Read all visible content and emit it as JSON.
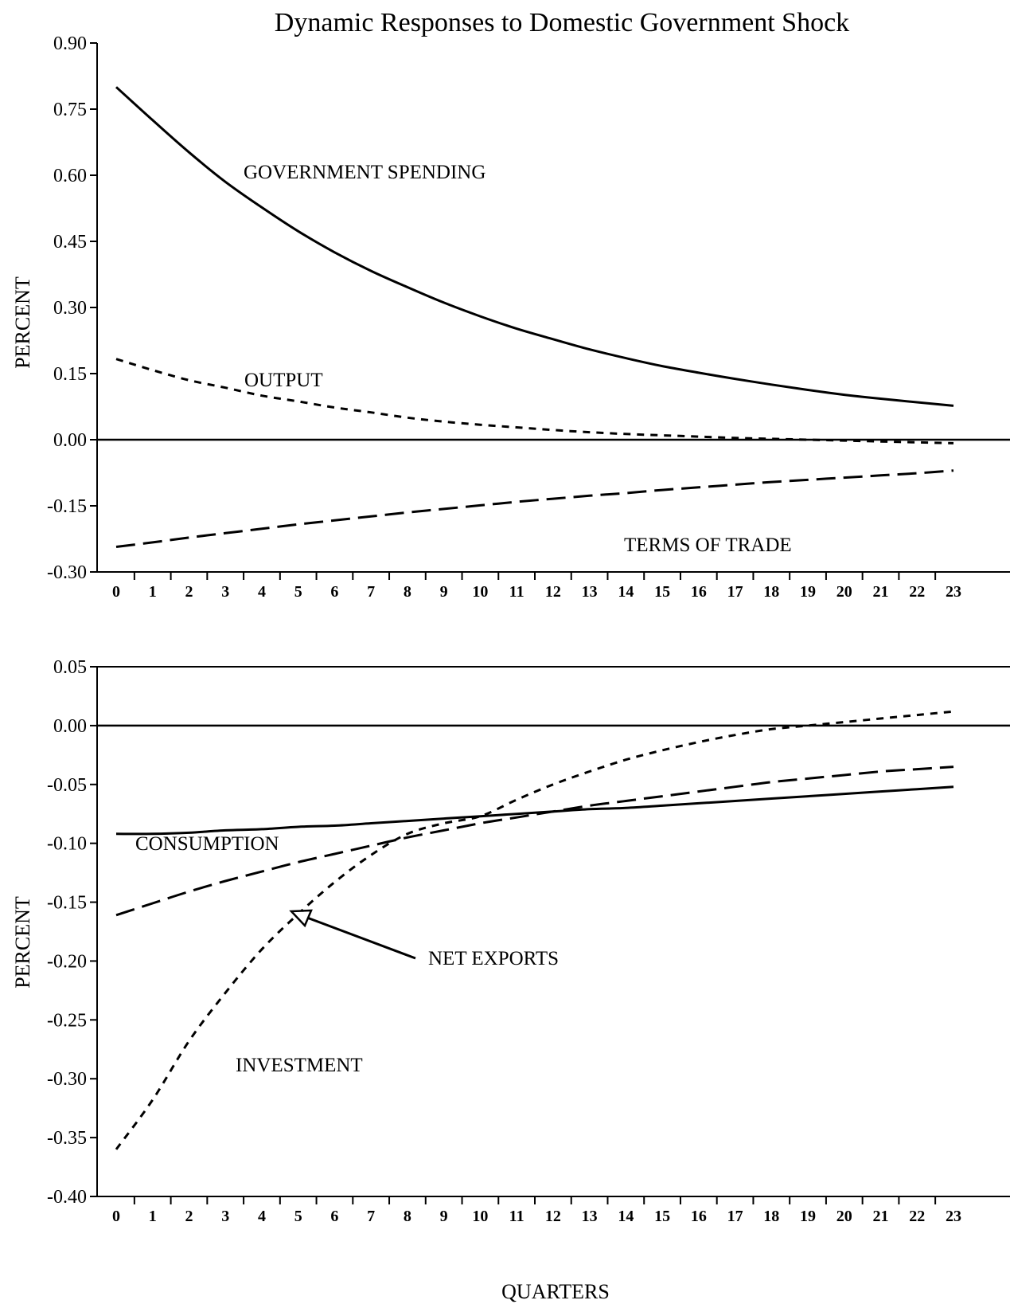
{
  "figure": {
    "title": "Dynamic Responses to Domestic Government Shock"
  },
  "chart_data": [
    {
      "type": "line",
      "title": "Dynamic Responses to Domestic Government Shock",
      "ylabel": "PERCENT",
      "xlabel": "",
      "ylim": [
        -0.3,
        0.9
      ],
      "xlim": [
        0,
        23
      ],
      "yticks": [
        "0.90",
        "0.75",
        "0.60",
        "0.45",
        "0.30",
        "0.15",
        "0.00",
        "-0.15",
        "-0.30"
      ],
      "xticks": [
        "0",
        "1",
        "2",
        "3",
        "4",
        "5",
        "6",
        "7",
        "8",
        "9",
        "10",
        "11",
        "12",
        "13",
        "14",
        "15",
        "16",
        "17",
        "18",
        "19",
        "20",
        "21",
        "22",
        "23"
      ],
      "zero_line": true,
      "grid": false,
      "x": [
        0,
        1,
        2,
        3,
        4,
        5,
        6,
        7,
        8,
        9,
        10,
        11,
        12,
        13,
        14,
        15,
        16,
        17,
        18,
        19,
        20,
        21,
        22,
        23
      ],
      "series": [
        {
          "name": "GOVERNMENT SPENDING",
          "style": "solid",
          "values": [
            0.8,
            0.725,
            0.652,
            0.585,
            0.527,
            0.473,
            0.425,
            0.383,
            0.346,
            0.311,
            0.28,
            0.252,
            0.228,
            0.205,
            0.185,
            0.167,
            0.152,
            0.138,
            0.125,
            0.113,
            0.102,
            0.093,
            0.085,
            0.077
          ]
        },
        {
          "name": "OUTPUT",
          "style": "short-dash",
          "values": [
            0.183,
            0.158,
            0.135,
            0.118,
            0.1,
            0.087,
            0.073,
            0.062,
            0.05,
            0.041,
            0.034,
            0.028,
            0.022,
            0.017,
            0.013,
            0.01,
            0.007,
            0.004,
            0.002,
            0.0,
            -0.002,
            -0.004,
            -0.006,
            -0.008
          ]
        },
        {
          "name": "TERMS OF TRADE",
          "style": "long-dash",
          "values": [
            -0.243,
            -0.233,
            -0.222,
            -0.212,
            -0.202,
            -0.192,
            -0.183,
            -0.174,
            -0.165,
            -0.157,
            -0.149,
            -0.141,
            -0.134,
            -0.127,
            -0.121,
            -0.114,
            -0.108,
            -0.102,
            -0.096,
            -0.091,
            -0.086,
            -0.081,
            -0.076,
            -0.07
          ]
        }
      ],
      "annotations": [
        "GOVERNMENT SPENDING",
        "OUTPUT",
        "TERMS OF TRADE"
      ]
    },
    {
      "type": "line",
      "title": "",
      "ylabel": "PERCENT",
      "xlabel": "QUARTERS",
      "ylim": [
        -0.4,
        0.05
      ],
      "xlim": [
        0,
        23
      ],
      "yticks": [
        "0.05",
        "0.00",
        "-0.05",
        "-0.10",
        "-0.15",
        "-0.20",
        "-0.25",
        "-0.30",
        "-0.35",
        "-0.40"
      ],
      "xticks": [
        "0",
        "1",
        "2",
        "3",
        "4",
        "5",
        "6",
        "7",
        "8",
        "9",
        "10",
        "11",
        "12",
        "13",
        "14",
        "15",
        "16",
        "17",
        "18",
        "19",
        "20",
        "21",
        "22",
        "23"
      ],
      "zero_line": true,
      "grid": false,
      "x": [
        0,
        1,
        2,
        3,
        4,
        5,
        6,
        7,
        8,
        9,
        10,
        11,
        12,
        13,
        14,
        15,
        16,
        17,
        18,
        19,
        20,
        21,
        22,
        23
      ],
      "series": [
        {
          "name": "CONSUMPTION",
          "style": "solid",
          "values": [
            -0.092,
            -0.092,
            -0.091,
            -0.089,
            -0.088,
            -0.086,
            -0.085,
            -0.083,
            -0.081,
            -0.079,
            -0.077,
            -0.075,
            -0.073,
            -0.071,
            -0.07,
            -0.068,
            -0.066,
            -0.064,
            -0.062,
            -0.06,
            -0.058,
            -0.056,
            -0.054,
            -0.052
          ]
        },
        {
          "name": "INVESTMENT",
          "style": "short-dash",
          "values": [
            -0.36,
            -0.318,
            -0.268,
            -0.227,
            -0.19,
            -0.16,
            -0.133,
            -0.11,
            -0.092,
            -0.083,
            -0.077,
            -0.063,
            -0.05,
            -0.039,
            -0.029,
            -0.021,
            -0.014,
            -0.008,
            -0.003,
            0.0,
            0.003,
            0.006,
            0.009,
            0.012
          ]
        },
        {
          "name": "NET EXPORTS",
          "style": "long-dash",
          "values": [
            -0.161,
            -0.151,
            -0.141,
            -0.132,
            -0.124,
            -0.116,
            -0.109,
            -0.102,
            -0.095,
            -0.089,
            -0.083,
            -0.078,
            -0.073,
            -0.068,
            -0.064,
            -0.06,
            -0.056,
            -0.052,
            -0.048,
            -0.045,
            -0.042,
            -0.039,
            -0.037,
            -0.035
          ]
        }
      ],
      "annotations": [
        "CONSUMPTION",
        "NET EXPORTS",
        "INVESTMENT"
      ]
    }
  ]
}
